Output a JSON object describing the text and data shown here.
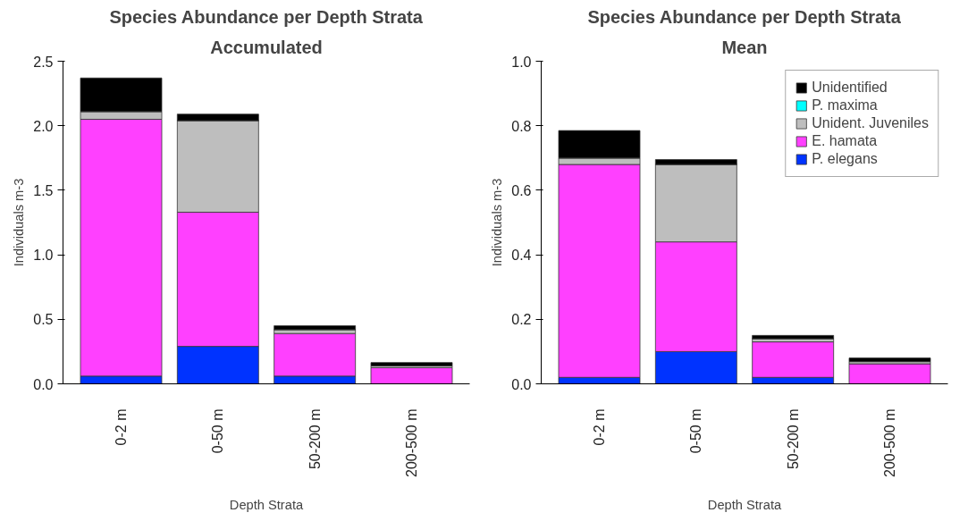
{
  "chart_data": [
    {
      "type": "bar",
      "title": "Species Abundance per Depth Strata",
      "subtitle": "Accumulated",
      "xlabel": "Depth Strata",
      "ylabel": "Individuals m-3",
      "categories": [
        "0-2 m",
        "0-50 m",
        "50-200 m",
        "200-500 m"
      ],
      "stacked": true,
      "ylim": [
        0,
        2.5
      ],
      "yticks": [
        {
          "value": 0,
          "label": "0.0"
        },
        0.5,
        {
          "value": 1,
          "label": "1.0"
        },
        1.5,
        {
          "value": 2,
          "label": "2.0"
        },
        2.5
      ],
      "grid": false,
      "legend": false,
      "series": [
        {
          "color": "#0033ff",
          "values": [
            0.06,
            0.29,
            0.06,
            0
          ]
        },
        {
          "color": "#ff40ff",
          "values": [
            1.99,
            1.04,
            0.33,
            0.125
          ]
        },
        {
          "color": "#bebebe",
          "values": [
            0.06,
            0.71,
            0.03,
            0.015
          ]
        },
        {
          "color": "#00ffff",
          "values": [
            0,
            0,
            0,
            0
          ]
        },
        {
          "color": "#000000",
          "values": [
            0.26,
            0.05,
            0.03,
            0.025
          ]
        }
      ]
    },
    {
      "type": "bar",
      "title": "Species Abundance per Depth Strata",
      "subtitle": "Mean",
      "xlabel": "Depth Strata",
      "ylabel": "Individuals m-3",
      "categories": [
        "0-2 m",
        "0-50 m",
        "50-200 m",
        "200-500 m"
      ],
      "stacked": true,
      "ylim": [
        0,
        1
      ],
      "yticks": [
        {
          "value": 0,
          "label": "0.0"
        },
        0.2,
        0.4,
        0.6,
        0.8,
        {
          "value": 1,
          "label": "1.0"
        }
      ],
      "grid": false,
      "legend": "top right",
      "series": [
        {
          "name": "P. elegans",
          "color": "#0033ff",
          "values": [
            0.02,
            0.1,
            0.02,
            0
          ]
        },
        {
          "name": "E. hamata",
          "color": "#ff40ff",
          "values": [
            0.66,
            0.34,
            0.11,
            0.062
          ]
        },
        {
          "name": "Unident. Juveniles",
          "color": "#bebebe",
          "values": [
            0.02,
            0.24,
            0.01,
            0.007
          ]
        },
        {
          "name": "P. maxima",
          "color": "#00ffff",
          "values": [
            0,
            0,
            0,
            0
          ]
        },
        {
          "name": "Unidentified",
          "color": "#000000",
          "values": [
            0.085,
            0.015,
            0.01,
            0.011
          ]
        }
      ]
    }
  ]
}
